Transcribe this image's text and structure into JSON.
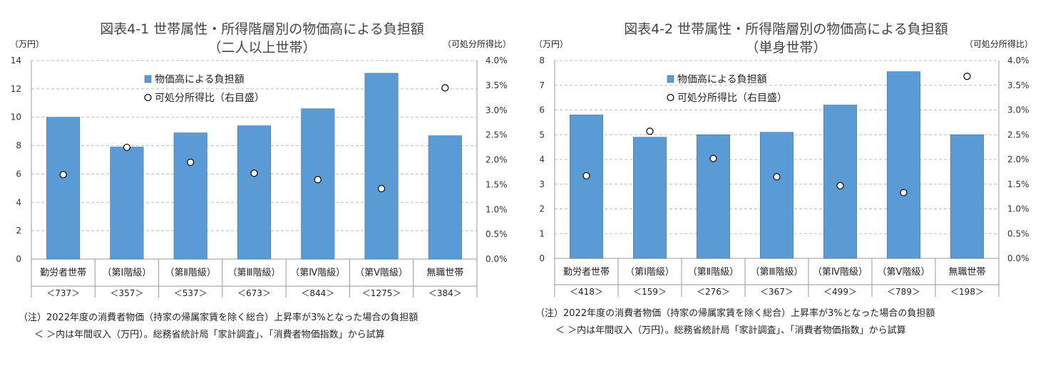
{
  "charts": [
    {
      "title_line1": "図表4-1 世帯属性・所得階層別の物価高による負担額",
      "title_line2": "（二人以上世帯）",
      "left_axis_unit": "（万円）",
      "right_axis_unit": "（可処分所得比）",
      "note_line1": "（注）2022年度の消費者物価（持家の帰属家賃を除く総合）上昇率が3%となった場合の負担額",
      "note_line2": "＜ ＞内は年間収入（万円）。総務省統計局「家計調査」、「消費者物価指数」から試算"
    },
    {
      "title_line1": "図表4-2 世帯属性・所得階層別の物価高による負担額",
      "title_line2": "（単身世帯）",
      "left_axis_unit": "（万円）",
      "right_axis_unit": "（可処分所得比）",
      "note_line1": "（注）2022年度の消費者物価（持家の帰属家賃を除く総合）上昇率が3%となった場合の負担額",
      "note_line2": "＜ ＞内は年間収入（万円）。総務省統計局「家計調査」、「消費者物価指数」から試算"
    }
  ],
  "colors": {
    "bar": "#5b9bd5",
    "bar_border": "#41719c",
    "grid": "#bfbfbf",
    "marker_fill": "#ffffff",
    "marker_stroke": "#000000"
  },
  "chart_data": [
    {
      "type": "bar",
      "categories": [
        "勤労者世帯",
        "（第Ⅰ階級）",
        "（第Ⅱ階級）",
        "（第Ⅲ階級）",
        "（第Ⅳ階級）",
        "（第Ⅴ階級）",
        "無職世帯"
      ],
      "category_sublabels": [
        "＜737＞",
        "＜357＞",
        "＜537＞",
        "＜673＞",
        "＜844＞",
        "＜1275＞",
        "＜384＞"
      ],
      "series": [
        {
          "name": "物価高による負担額",
          "type": "bar",
          "axis": "left",
          "values": [
            10.0,
            7.9,
            8.9,
            9.4,
            10.6,
            13.1,
            8.7
          ]
        },
        {
          "name": "可処分所得比（右目盛）",
          "type": "scatter",
          "axis": "right",
          "values": [
            1.7,
            2.25,
            1.95,
            1.73,
            1.6,
            1.42,
            3.45
          ]
        }
      ],
      "ylim": [
        0,
        14
      ],
      "yticks": [
        "0",
        "2",
        "4",
        "6",
        "8",
        "10",
        "12",
        "14"
      ],
      "y2lim": [
        0,
        4.0
      ],
      "y2ticks": [
        "0.0%",
        "0.5%",
        "1.0%",
        "1.5%",
        "2.0%",
        "2.5%",
        "3.0%",
        "3.5%",
        "4.0%"
      ],
      "grid": true,
      "legend_position": "top-center"
    },
    {
      "type": "bar",
      "categories": [
        "勤労者世帯",
        "（第Ⅰ階級）",
        "（第Ⅱ階級）",
        "（第Ⅲ階級）",
        "（第Ⅳ階級）",
        "（第Ⅴ階級）",
        "無職世帯"
      ],
      "category_sublabels": [
        "＜418＞",
        "＜159＞",
        "＜276＞",
        "＜367＞",
        "＜499＞",
        "＜789＞",
        "＜198＞"
      ],
      "series": [
        {
          "name": "物価高による負担額",
          "type": "bar",
          "axis": "left",
          "values": [
            5.8,
            4.9,
            5.0,
            5.1,
            6.2,
            7.55,
            5.0
          ]
        },
        {
          "name": "可処分所得比（右目盛）",
          "type": "scatter",
          "axis": "right",
          "values": [
            1.67,
            2.57,
            2.02,
            1.65,
            1.47,
            1.33,
            3.68
          ]
        }
      ],
      "ylim": [
        0,
        8
      ],
      "yticks": [
        "0",
        "1",
        "2",
        "3",
        "4",
        "5",
        "6",
        "7",
        "8"
      ],
      "y2lim": [
        0,
        4.0
      ],
      "y2ticks": [
        "0.0%",
        "0.5%",
        "1.0%",
        "1.5%",
        "2.0%",
        "2.5%",
        "3.0%",
        "3.5%",
        "4.0%"
      ],
      "grid": true,
      "legend_position": "top-center"
    }
  ]
}
